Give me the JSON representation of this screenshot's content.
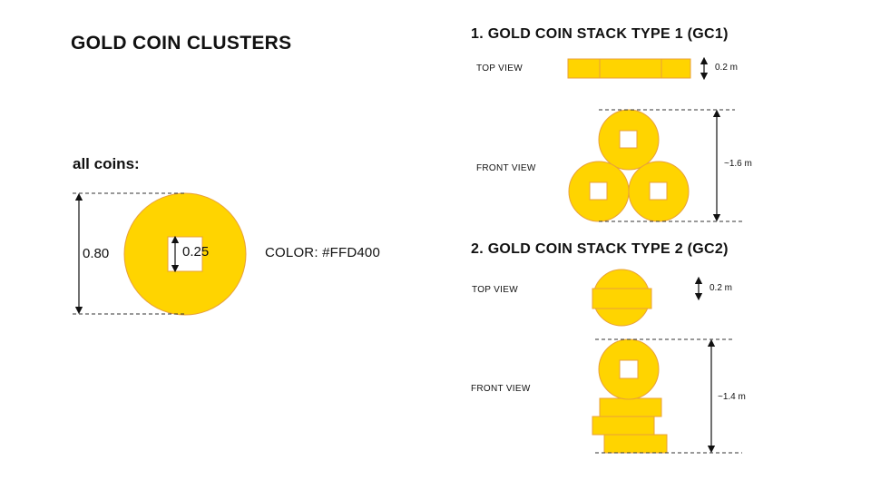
{
  "title": "GOLD COIN CLUSTERS",
  "coin": {
    "heading": "all coins:",
    "diameter": "0.80",
    "hole": "0.25",
    "color_label": "COLOR: #FFD400",
    "fill": "#FFD400",
    "stroke": "#E8A13A"
  },
  "gc1": {
    "heading": "1. GOLD COIN STACK TYPE 1 (GC1)",
    "top_view": "TOP VIEW",
    "front_view": "FRONT VIEW",
    "thickness": "0.2 m",
    "height": "~1.6 m"
  },
  "gc2": {
    "heading": "2. GOLD COIN STACK TYPE 2 (GC2)",
    "top_view": "TOP VIEW",
    "front_view": "FRONT VIEW",
    "thickness": "0.2 m",
    "height": "~1.4 m"
  }
}
